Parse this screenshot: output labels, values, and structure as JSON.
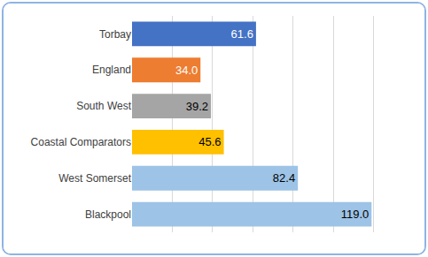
{
  "chart_data": {
    "type": "bar",
    "orientation": "horizontal",
    "categories": [
      "Torbay",
      "England",
      "South West",
      "Coastal Comparators",
      "West Somerset",
      "Blackpool"
    ],
    "values": [
      61.6,
      34.0,
      39.2,
      45.6,
      82.4,
      119.0
    ],
    "value_labels": [
      "61.6",
      "34.0",
      "39.2",
      "45.6",
      "82.4",
      "119.0"
    ],
    "colors": [
      "#4472c4",
      "#ed7d31",
      "#a5a5a5",
      "#ffc000",
      "#9dc3e6",
      "#9dc3e6"
    ],
    "xlim": [
      0,
      140
    ],
    "xticks": [
      0,
      20,
      40,
      60,
      80,
      100,
      120,
      140
    ],
    "grid": true,
    "data_labels": true,
    "tick_labels": "y"
  }
}
